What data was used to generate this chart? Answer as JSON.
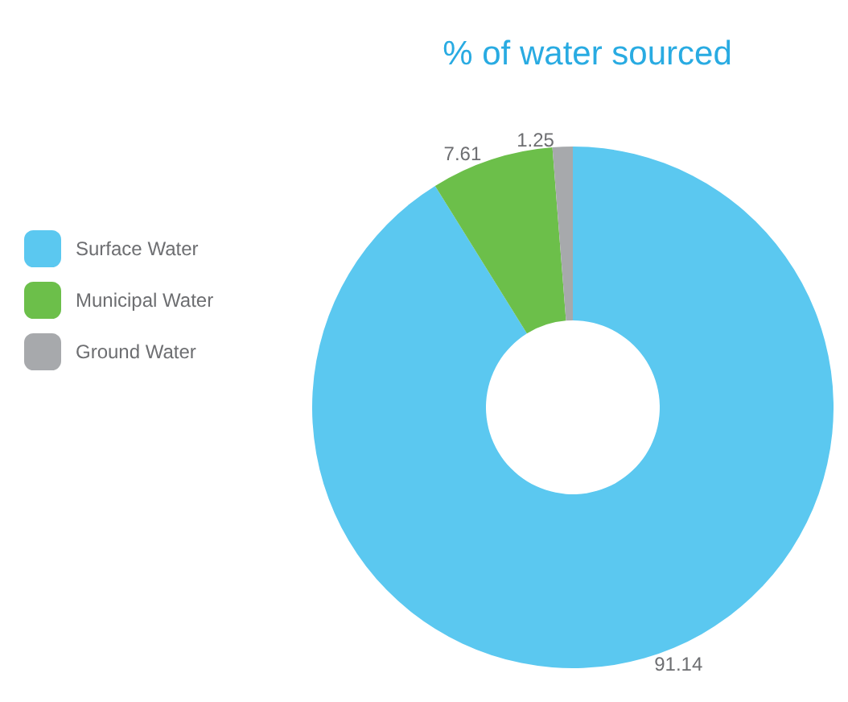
{
  "chart_data": {
    "type": "donut",
    "title": "% of water sourced",
    "categories": [
      "Surface Water",
      "Municipal Water",
      "Ground Water"
    ],
    "values": [
      91.14,
      7.61,
      1.25
    ],
    "colors": [
      "#5bc8f0",
      "#6cbf4a",
      "#a7a9ac"
    ],
    "legend": "left",
    "data_labels": true
  }
}
